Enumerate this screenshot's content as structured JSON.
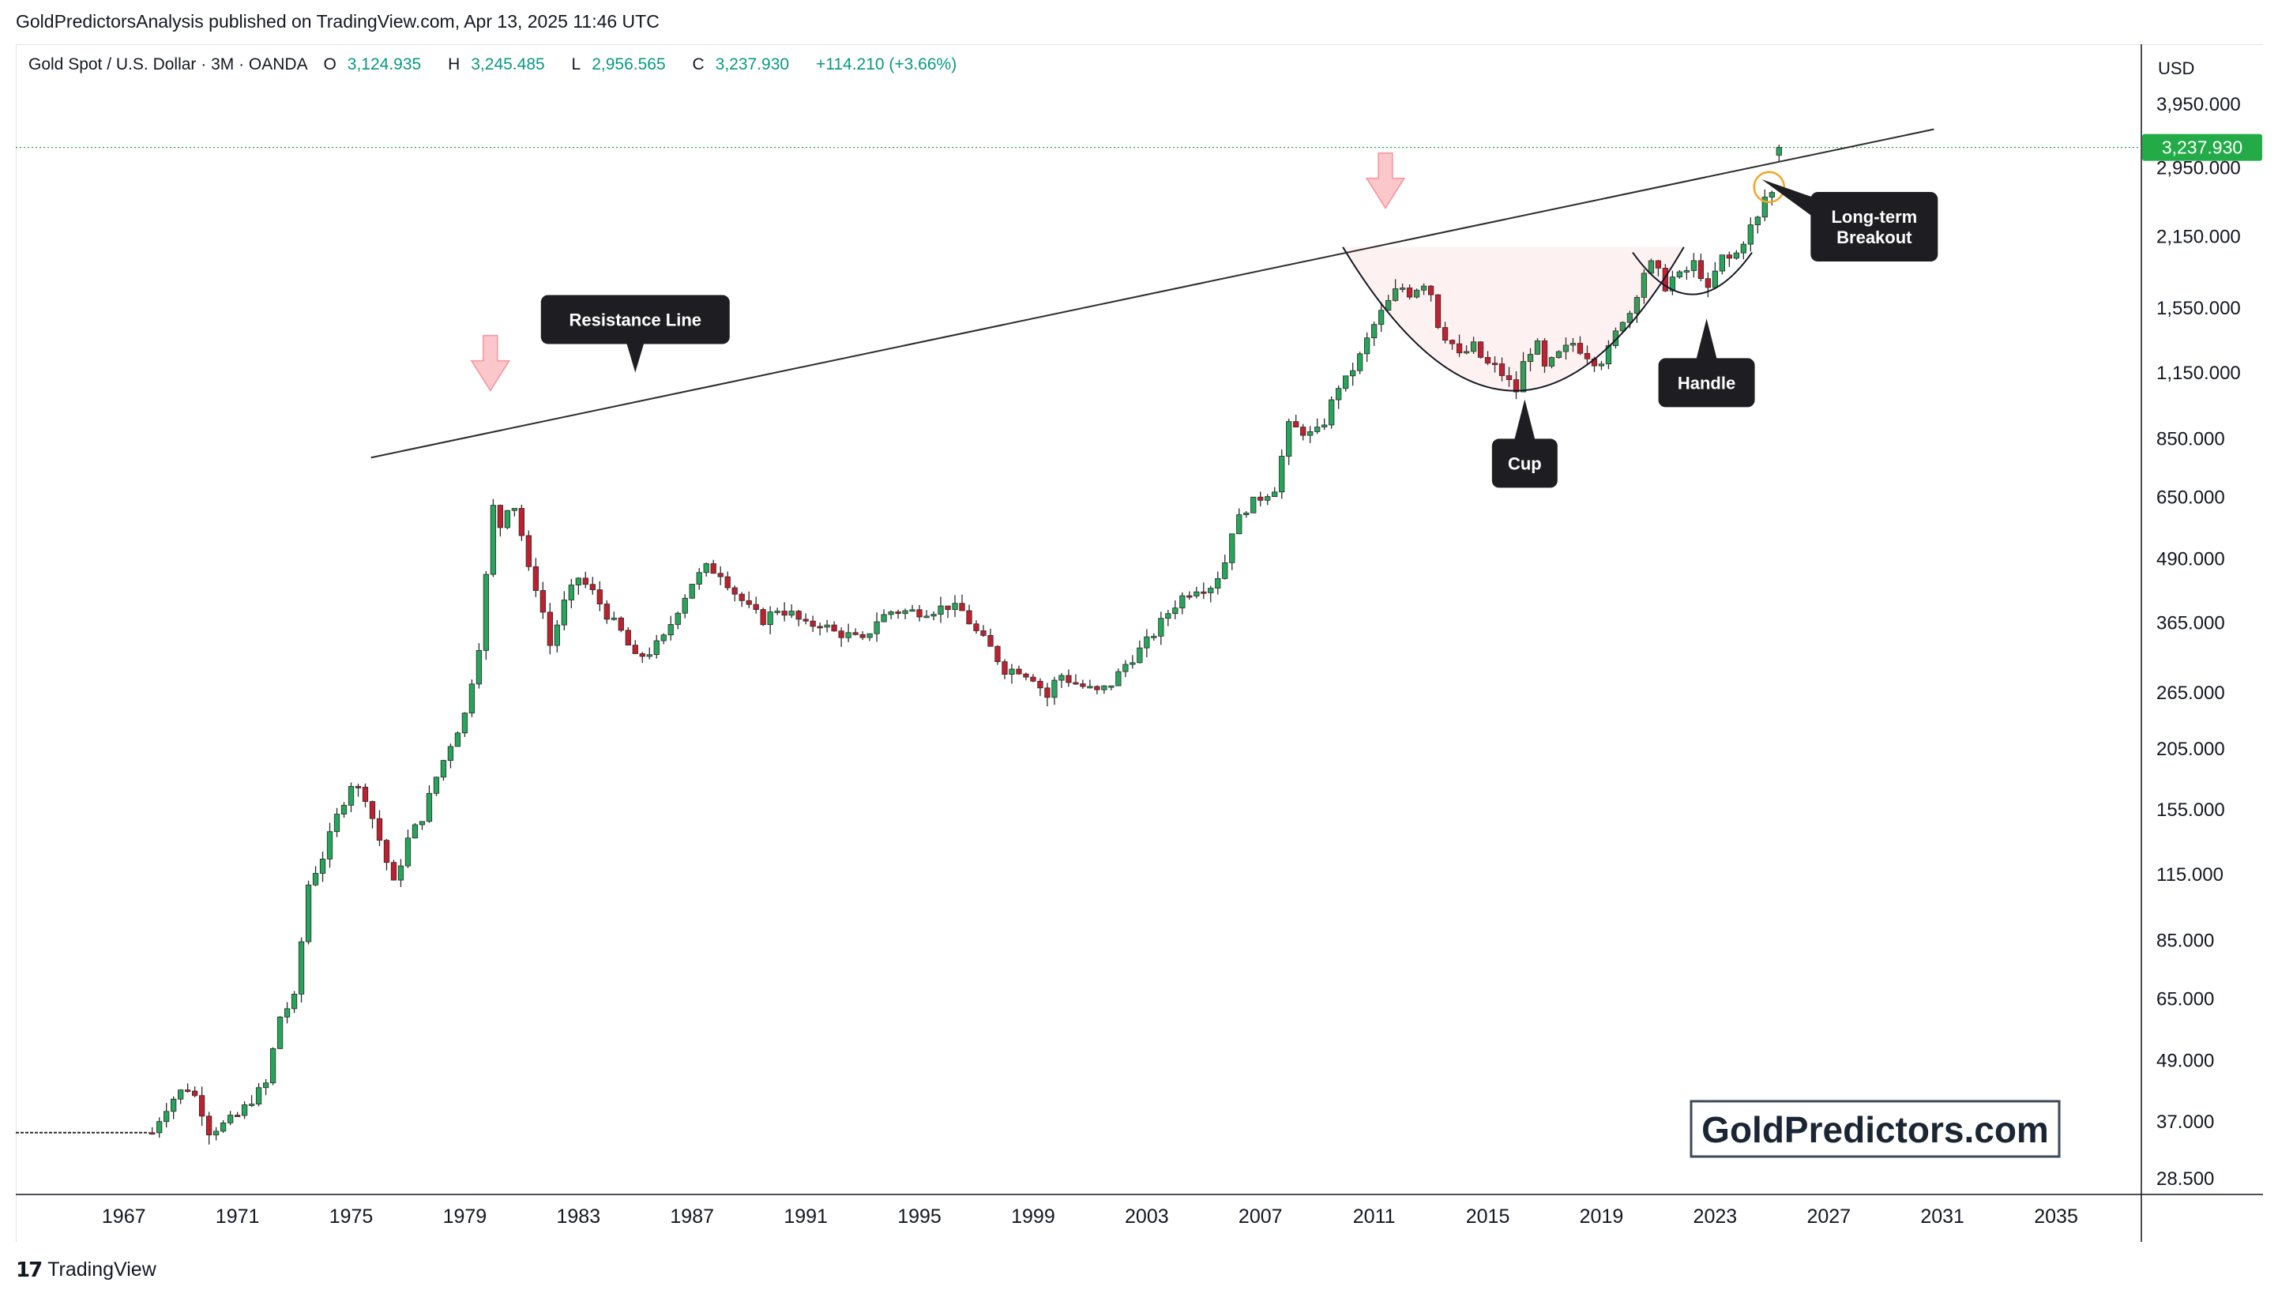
{
  "header": {
    "publisher": "GoldPredictorsAnalysis published on TradingView.com, Apr 13, 2025 11:46 UTC"
  },
  "legend": {
    "symbol": "Gold Spot / U.S. Dollar · 3M · OANDA",
    "open_label": "O",
    "open": "3,124.935",
    "high_label": "H",
    "high": "3,245.485",
    "low_label": "L",
    "low": "2,956.565",
    "close_label": "C",
    "close": "3,237.930",
    "change": "+114.210 (+3.66%)"
  },
  "currency": "USD",
  "last_price_label": "3,237.930",
  "watermark": "GoldPredictors.com",
  "branding": "TradingView",
  "colors": {
    "up": "#089981",
    "down": "#f23645",
    "up_candle": "#26a65b",
    "down_candle": "#c0202e",
    "price_tag": "#22ab47",
    "annotation_bg": "#1e1e22"
  },
  "icons": {
    "tradingview": "tradingview-logo-icon"
  },
  "chart_data": {
    "type": "candlestick",
    "scale": "log",
    "timeframe": "3M",
    "ylim": [
      28.5,
      5200
    ],
    "xlim": [
      1963.2,
      2038.0
    ],
    "y_ticks": [
      28.5,
      37,
      49,
      65,
      85,
      115,
      155,
      205,
      265,
      365,
      490,
      650,
      850,
      1150,
      1550,
      2150,
      2950,
      3950
    ],
    "y_tick_labels": [
      "28.500",
      "37.000",
      "49.000",
      "65.000",
      "85.000",
      "115.000",
      "155.000",
      "205.000",
      "265.000",
      "365.000",
      "490.000",
      "650.000",
      "850.000",
      "1,150.000",
      "1,550.000",
      "2,150.000",
      "2,950.000",
      "3,950.000"
    ],
    "x_ticks": [
      1967,
      1971,
      1975,
      1979,
      1983,
      1987,
      1991,
      1995,
      1999,
      2003,
      2007,
      2011,
      2015,
      2019,
      2023,
      2027,
      2031,
      2035
    ],
    "x_tick_labels": [
      "1967",
      "1971",
      "1975",
      "1979",
      "1983",
      "1987",
      "1991",
      "1995",
      "1999",
      "2003",
      "2007",
      "2011",
      "2015",
      "2019",
      "2023",
      "2027",
      "2031",
      "2035"
    ],
    "last_price": 3237.93,
    "price_anchors": [
      [
        1968.0,
        35.2
      ],
      [
        1968.3,
        38.0
      ],
      [
        1968.6,
        40.5
      ],
      [
        1968.9,
        42.0
      ],
      [
        1969.2,
        43.5
      ],
      [
        1969.6,
        41.0
      ],
      [
        1970.0,
        35.5
      ],
      [
        1970.5,
        36.5
      ],
      [
        1971.0,
        38.0
      ],
      [
        1971.5,
        41.0
      ],
      [
        1972.0,
        44.0
      ],
      [
        1972.5,
        60.0
      ],
      [
        1973.0,
        65.0
      ],
      [
        1973.5,
        110.0
      ],
      [
        1974.0,
        125.0
      ],
      [
        1974.5,
        150.0
      ],
      [
        1975.0,
        175.0
      ],
      [
        1975.5,
        165.0
      ],
      [
        1976.0,
        135.0
      ],
      [
        1976.5,
        110.0
      ],
      [
        1977.0,
        135.0
      ],
      [
        1977.5,
        150.0
      ],
      [
        1978.0,
        180.0
      ],
      [
        1978.5,
        210.0
      ],
      [
        1979.0,
        240.0
      ],
      [
        1979.5,
        330.0
      ],
      [
        1979.8,
        480.0
      ],
      [
        1980.0,
        620.0
      ],
      [
        1980.3,
        560.0
      ],
      [
        1980.6,
        660.0
      ],
      [
        1980.9,
        590.0
      ],
      [
        1981.2,
        470.0
      ],
      [
        1981.6,
        420.0
      ],
      [
        1982.0,
        330.0
      ],
      [
        1982.5,
        400.0
      ],
      [
        1983.0,
        450.0
      ],
      [
        1983.5,
        420.0
      ],
      [
        1984.0,
        380.0
      ],
      [
        1984.5,
        350.0
      ],
      [
        1985.0,
        310.0
      ],
      [
        1985.5,
        320.0
      ],
      [
        1986.0,
        340.0
      ],
      [
        1986.5,
        390.0
      ],
      [
        1987.0,
        440.0
      ],
      [
        1987.5,
        470.0
      ],
      [
        1988.0,
        460.0
      ],
      [
        1988.5,
        420.0
      ],
      [
        1989.0,
        390.0
      ],
      [
        1989.5,
        370.0
      ],
      [
        1990.0,
        390.0
      ],
      [
        1990.5,
        380.0
      ],
      [
        1991.0,
        360.0
      ],
      [
        1991.5,
        365.0
      ],
      [
        1992.0,
        350.0
      ],
      [
        1992.5,
        345.0
      ],
      [
        1993.0,
        335.0
      ],
      [
        1993.5,
        370.0
      ],
      [
        1994.0,
        385.0
      ],
      [
        1994.5,
        385.0
      ],
      [
        1995.0,
        385.0
      ],
      [
        1995.5,
        388.0
      ],
      [
        1996.0,
        395.0
      ],
      [
        1996.5,
        385.0
      ],
      [
        1997.0,
        350.0
      ],
      [
        1997.5,
        325.0
      ],
      [
        1998.0,
        295.0
      ],
      [
        1998.5,
        295.0
      ],
      [
        1999.0,
        285.0
      ],
      [
        1999.5,
        260.0
      ],
      [
        1999.9,
        290.0
      ],
      [
        2000.3,
        280.0
      ],
      [
        2000.8,
        272.0
      ],
      [
        2001.3,
        265.0
      ],
      [
        2001.8,
        278.0
      ],
      [
        2002.2,
        300.0
      ],
      [
        2002.7,
        320.0
      ],
      [
        2003.2,
        345.0
      ],
      [
        2003.7,
        380.0
      ],
      [
        2004.2,
        410.0
      ],
      [
        2004.7,
        430.0
      ],
      [
        2005.2,
        430.0
      ],
      [
        2005.7,
        470.0
      ],
      [
        2006.0,
        560.0
      ],
      [
        2006.5,
        620.0
      ],
      [
        2007.0,
        650.0
      ],
      [
        2007.5,
        680.0
      ],
      [
        2008.0,
        900.0
      ],
      [
        2008.5,
        880.0
      ],
      [
        2008.9,
        860.0
      ],
      [
        2009.3,
        930.0
      ],
      [
        2009.7,
        1080.0
      ],
      [
        2010.0,
        1110.0
      ],
      [
        2010.5,
        1240.0
      ],
      [
        2010.9,
        1400.0
      ],
      [
        2011.2,
        1500.0
      ],
      [
        2011.6,
        1620.0
      ],
      [
        2011.9,
        1720.0
      ],
      [
        2012.3,
        1650.0
      ],
      [
        2012.7,
        1760.0
      ],
      [
        2013.0,
        1660.0
      ],
      [
        2013.3,
        1400.0
      ],
      [
        2013.7,
        1330.0
      ],
      [
        2014.0,
        1240.0
      ],
      [
        2014.5,
        1300.0
      ],
      [
        2014.9,
        1200.0
      ],
      [
        2015.3,
        1180.0
      ],
      [
        2015.7,
        1110.0
      ],
      [
        2016.0,
        1060.0
      ],
      [
        2016.3,
        1230.0
      ],
      [
        2016.7,
        1330.0
      ],
      [
        2017.0,
        1170.0
      ],
      [
        2017.5,
        1250.0
      ],
      [
        2018.0,
        1320.0
      ],
      [
        2018.5,
        1250.0
      ],
      [
        2018.9,
        1200.0
      ],
      [
        2019.3,
        1290.0
      ],
      [
        2019.7,
        1470.0
      ],
      [
        2020.0,
        1520.0
      ],
      [
        2020.3,
        1700.0
      ],
      [
        2020.6,
        1900.0
      ],
      [
        2020.9,
        1880.0
      ],
      [
        2021.2,
        1700.0
      ],
      [
        2021.5,
        1780.0
      ],
      [
        2021.9,
        1800.0
      ],
      [
        2022.2,
        1920.0
      ],
      [
        2022.5,
        1810.0
      ],
      [
        2022.8,
        1640.0
      ],
      [
        2023.0,
        1820.0
      ],
      [
        2023.3,
        1980.0
      ],
      [
        2023.6,
        1920.0
      ],
      [
        2023.9,
        2060.0
      ],
      [
        2024.2,
        2230.0
      ],
      [
        2024.5,
        2330.0
      ],
      [
        2024.8,
        2630.0
      ],
      [
        2025.0,
        2625.0
      ],
      [
        2025.25,
        3237.93
      ]
    ],
    "pre_history": {
      "from": 1963.2,
      "to": 1967.9,
      "value": 35.2
    },
    "resistance_line": {
      "x0": 1975.7,
      "y0": 780.0,
      "x1": 2030.7,
      "y1": 3520.0
    },
    "annotations": [
      {
        "text": "Resistance Line",
        "x": 1985.0,
        "y": 1470.0,
        "pointer": "down"
      },
      {
        "text": "Cup",
        "x": 2016.3,
        "y": 760.0,
        "pointer": "up"
      },
      {
        "text": "Handle",
        "x": 2022.7,
        "y": 1100.0,
        "pointer": "up"
      },
      {
        "text_lines": [
          "Long-term",
          "Breakout"
        ],
        "x": 2028.6,
        "y": 2250.0,
        "pointer": "left"
      }
    ],
    "peak_markers": [
      {
        "x": 1979.9,
        "y": 1060.0
      },
      {
        "x": 2011.4,
        "y": 2450.0
      }
    ],
    "cup_curve": {
      "x0": 2009.9,
      "y0": 2050.0,
      "xmid": 2016.0,
      "ymid": 1060.0,
      "x1": 2021.9,
      "y1": 2050.0
    },
    "handle_curve": {
      "x0": 2020.1,
      "y0": 2000.0,
      "xmid": 2022.2,
      "ymid": 1650.0,
      "x1": 2024.3,
      "y1": 2000.0
    },
    "breakout_circle": {
      "x": 2024.9,
      "y": 2700.0
    }
  }
}
